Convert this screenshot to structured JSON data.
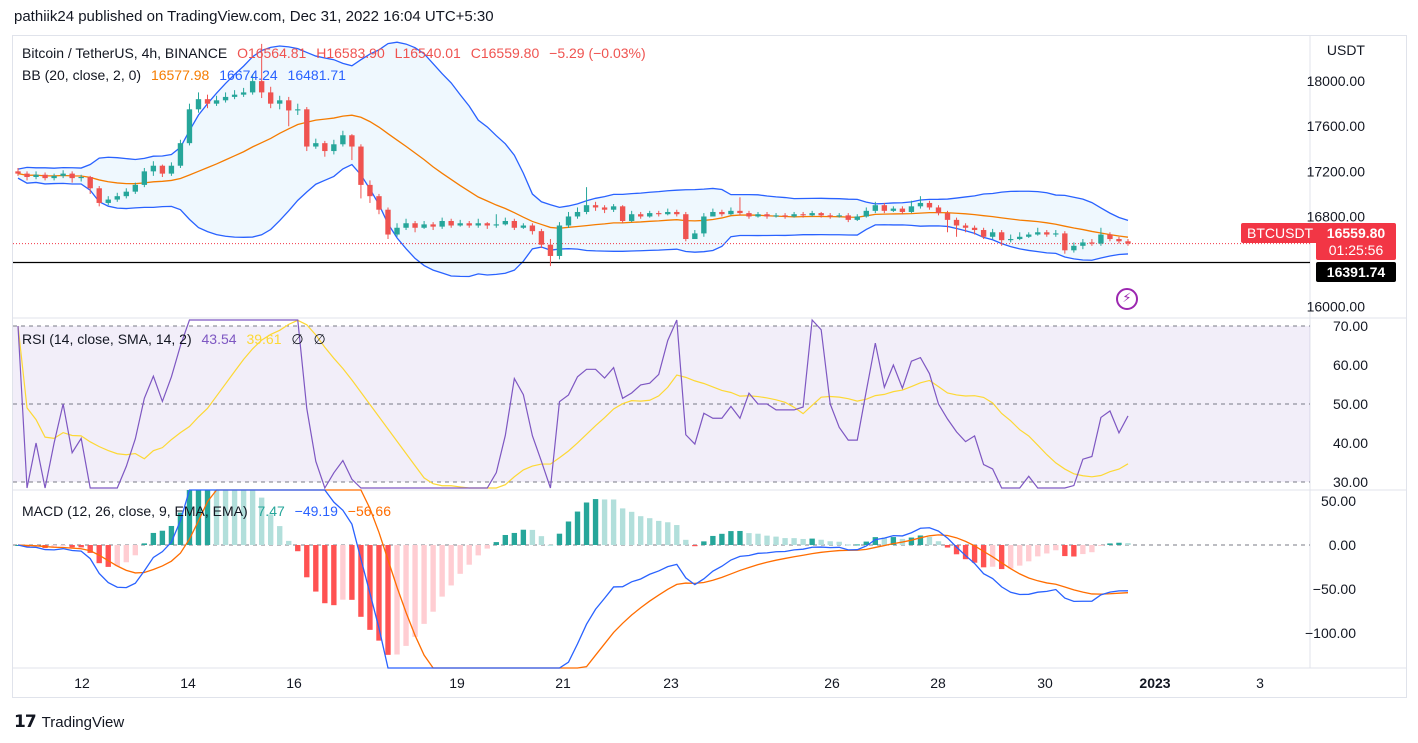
{
  "header": {
    "publisher_line": "pathiik24 published on TradingView.com, Dec 31, 2022 16:04 UTC+5:30"
  },
  "legend_main": {
    "symbol": "Bitcoin / TetherUS, 4h, BINANCE",
    "open": "O16564.81",
    "high": "H16583.90",
    "low": "L16540.01",
    "close": "C16559.80",
    "change": "−5.29 (−0.03%)",
    "bb_label": "BB (20, close, 2, 0)",
    "bb_mid": "16577.98",
    "bb_up": "16674.24",
    "bb_low": "16481.71"
  },
  "legend_rsi": {
    "label": "RSI (14, close, SMA, 14, 2)",
    "rsi": "43.54",
    "sma": "39.61",
    "extra1": "∅",
    "extra2": "∅"
  },
  "legend_macd": {
    "label": "MACD (12, 26, close, 9, EMA, EMA)",
    "hist": "7.47",
    "macd": "−49.19",
    "signal": "−56.66"
  },
  "axis": {
    "currency": "USDT",
    "price_ticks": [
      "18000.00",
      "17600.00",
      "17200.00",
      "16800.00",
      "16000.00"
    ],
    "rsi_ticks": [
      "70.00",
      "60.00",
      "50.00",
      "40.00",
      "30.00"
    ],
    "macd_ticks": [
      "50.00",
      "0.00",
      "−50.00",
      "−100.00"
    ],
    "time_ticks": [
      "12",
      "14",
      "16",
      "19",
      "21",
      "23",
      "26",
      "28",
      "30",
      "2023",
      "3"
    ]
  },
  "price_tags": {
    "symbol": "BTCUSDT",
    "last": "16559.80",
    "countdown": "01:25:56",
    "line": "16391.74"
  },
  "footer": {
    "brand": "TradingView",
    "logo_glyph": "17"
  },
  "colors": {
    "up": "#26a69a",
    "down": "#ef5350",
    "bb_basis": "#f57c00",
    "bb_band": "#2962ff",
    "rsi": "#7e57c2",
    "rsi_sma": "#fdd835",
    "macd": "#2962ff",
    "signal": "#ff6d00",
    "hist_up_strong": "#26a69a",
    "hist_up_weak": "#b2dfdb",
    "hist_down_strong": "#ff5252",
    "hist_down_weak": "#ffcdd2"
  },
  "chart_data": {
    "type": "candlestick",
    "series_note": "4h candles, approx",
    "candles": [
      [
        17200,
        17180,
        17230,
        17160
      ],
      [
        17180,
        17150,
        17200,
        17120
      ],
      [
        17150,
        17170,
        17200,
        17130
      ],
      [
        17170,
        17140,
        17190,
        17120
      ],
      [
        17140,
        17160,
        17180,
        17120
      ],
      [
        17160,
        17180,
        17210,
        17140
      ],
      [
        17180,
        17140,
        17200,
        17100
      ],
      [
        17140,
        17150,
        17170,
        17110
      ],
      [
        17150,
        17050,
        17160,
        17000
      ],
      [
        17050,
        16920,
        17070,
        16890
      ],
      [
        16920,
        16950,
        16980,
        16900
      ],
      [
        16950,
        16980,
        17010,
        16930
      ],
      [
        16980,
        17020,
        17050,
        16960
      ],
      [
        17020,
        17080,
        17100,
        17000
      ],
      [
        17080,
        17200,
        17230,
        17060
      ],
      [
        17200,
        17250,
        17290,
        17160
      ],
      [
        17250,
        17180,
        17260,
        17150
      ],
      [
        17180,
        17250,
        17280,
        17160
      ],
      [
        17250,
        17450,
        17480,
        17230
      ],
      [
        17450,
        17750,
        17800,
        17430
      ],
      [
        17750,
        17840,
        17900,
        17720
      ],
      [
        17840,
        17800,
        17880,
        17760
      ],
      [
        17800,
        17830,
        17870,
        17780
      ],
      [
        17830,
        17860,
        17900,
        17810
      ],
      [
        17860,
        17880,
        17920,
        17840
      ],
      [
        17880,
        17900,
        17940,
        17860
      ],
      [
        17900,
        18000,
        18060,
        17880
      ],
      [
        18000,
        17900,
        18330,
        17850
      ],
      [
        17900,
        17800,
        17950,
        17760
      ],
      [
        17800,
        17830,
        17870,
        17750
      ],
      [
        17830,
        17740,
        17860,
        17600
      ],
      [
        17740,
        17750,
        17800,
        17700
      ],
      [
        17750,
        17420,
        17770,
        17380
      ],
      [
        17420,
        17450,
        17490,
        17400
      ],
      [
        17450,
        17380,
        17470,
        17330
      ],
      [
        17380,
        17440,
        17480,
        17350
      ],
      [
        17440,
        17520,
        17560,
        17420
      ],
      [
        17520,
        17420,
        17530,
        17300
      ],
      [
        17420,
        17080,
        17440,
        16960
      ],
      [
        17080,
        16980,
        17120,
        16920
      ],
      [
        16980,
        16860,
        17000,
        16820
      ],
      [
        16860,
        16640,
        16880,
        16600
      ],
      [
        16640,
        16700,
        16740,
        16620
      ],
      [
        16700,
        16740,
        16780,
        16680
      ],
      [
        16740,
        16700,
        16760,
        16660
      ],
      [
        16700,
        16730,
        16760,
        16690
      ],
      [
        16730,
        16710,
        16750,
        16680
      ],
      [
        16710,
        16760,
        16790,
        16690
      ],
      [
        16760,
        16720,
        16780,
        16700
      ],
      [
        16720,
        16740,
        16770,
        16710
      ],
      [
        16740,
        16720,
        16760,
        16700
      ],
      [
        16720,
        16740,
        16780,
        16700
      ],
      [
        16740,
        16720,
        16750,
        16690
      ],
      [
        16720,
        16730,
        16820,
        16700
      ],
      [
        16730,
        16760,
        16790,
        16720
      ],
      [
        16760,
        16700,
        16780,
        16680
      ],
      [
        16700,
        16720,
        16740,
        16690
      ],
      [
        16720,
        16670,
        16740,
        16640
      ],
      [
        16670,
        16550,
        16690,
        16520
      ],
      [
        16550,
        16450,
        16600,
        16360
      ],
      [
        16450,
        16720,
        16750,
        16420
      ],
      [
        16720,
        16800,
        16840,
        16700
      ],
      [
        16800,
        16840,
        16880,
        16780
      ],
      [
        16840,
        16900,
        17060,
        16820
      ],
      [
        16900,
        16880,
        16930,
        16850
      ],
      [
        16880,
        16860,
        16900,
        16830
      ],
      [
        16860,
        16890,
        16910,
        16840
      ],
      [
        16890,
        16760,
        16900,
        16740
      ],
      [
        16760,
        16820,
        16850,
        16750
      ],
      [
        16820,
        16800,
        16840,
        16780
      ],
      [
        16800,
        16830,
        16850,
        16790
      ],
      [
        16830,
        16820,
        16850,
        16800
      ],
      [
        16820,
        16840,
        16870,
        16810
      ],
      [
        16840,
        16820,
        16860,
        16800
      ],
      [
        16820,
        16600,
        16840,
        16580
      ],
      [
        16600,
        16650,
        16680,
        16620
      ],
      [
        16650,
        16800,
        16830,
        16620
      ],
      [
        16800,
        16840,
        16870,
        16810
      ],
      [
        16840,
        16820,
        16860,
        16800
      ],
      [
        16820,
        16850,
        16880,
        16810
      ],
      [
        16850,
        16830,
        16970,
        16810
      ],
      [
        16830,
        16800,
        16850,
        16780
      ],
      [
        16800,
        16820,
        16840,
        16790
      ],
      [
        16820,
        16800,
        16840,
        16780
      ],
      [
        16800,
        16810,
        16830,
        16790
      ],
      [
        16810,
        16800,
        16830,
        16780
      ],
      [
        16800,
        16820,
        16840,
        16790
      ],
      [
        16820,
        16810,
        16840,
        16790
      ],
      [
        16810,
        16830,
        16850,
        16800
      ],
      [
        16830,
        16810,
        16840,
        16790
      ],
      [
        16810,
        16800,
        16830,
        16780
      ],
      [
        16800,
        16810,
        16830,
        16790
      ],
      [
        16810,
        16770,
        16830,
        16750
      ],
      [
        16770,
        16800,
        16820,
        16760
      ],
      [
        16800,
        16850,
        16880,
        16790
      ],
      [
        16850,
        16900,
        16930,
        16830
      ],
      [
        16900,
        16850,
        16920,
        16830
      ],
      [
        16850,
        16870,
        16890,
        16840
      ],
      [
        16870,
        16840,
        16890,
        16820
      ],
      [
        16840,
        16890,
        16940,
        16830
      ],
      [
        16890,
        16920,
        16980,
        16870
      ],
      [
        16920,
        16880,
        16940,
        16860
      ],
      [
        16880,
        16830,
        16900,
        16810
      ],
      [
        16830,
        16770,
        16850,
        16660
      ],
      [
        16770,
        16720,
        16790,
        16620
      ],
      [
        16720,
        16700,
        16740,
        16660
      ],
      [
        16700,
        16680,
        16720,
        16640
      ],
      [
        16680,
        16620,
        16700,
        16600
      ],
      [
        16620,
        16660,
        16690,
        16600
      ],
      [
        16660,
        16590,
        16680,
        16540
      ],
      [
        16590,
        16600,
        16640,
        16570
      ],
      [
        16600,
        16620,
        16660,
        16590
      ],
      [
        16620,
        16640,
        16660,
        16610
      ],
      [
        16640,
        16660,
        16700,
        16630
      ],
      [
        16660,
        16640,
        16680,
        16620
      ],
      [
        16640,
        16650,
        16680,
        16620
      ],
      [
        16650,
        16500,
        16670,
        16470
      ],
      [
        16500,
        16540,
        16570,
        16480
      ],
      [
        16540,
        16570,
        16600,
        16510
      ],
      [
        16570,
        16560,
        16600,
        16540
      ],
      [
        16560,
        16640,
        16700,
        16540
      ],
      [
        16640,
        16600,
        16660,
        16580
      ],
      [
        16600,
        16580,
        16620,
        16560
      ],
      [
        16580,
        16560,
        16600,
        16540
      ]
    ],
    "price_range": [
      15900,
      18400
    ],
    "rsi_range": [
      30,
      70
    ],
    "macd_range": [
      -130,
      55
    ]
  }
}
